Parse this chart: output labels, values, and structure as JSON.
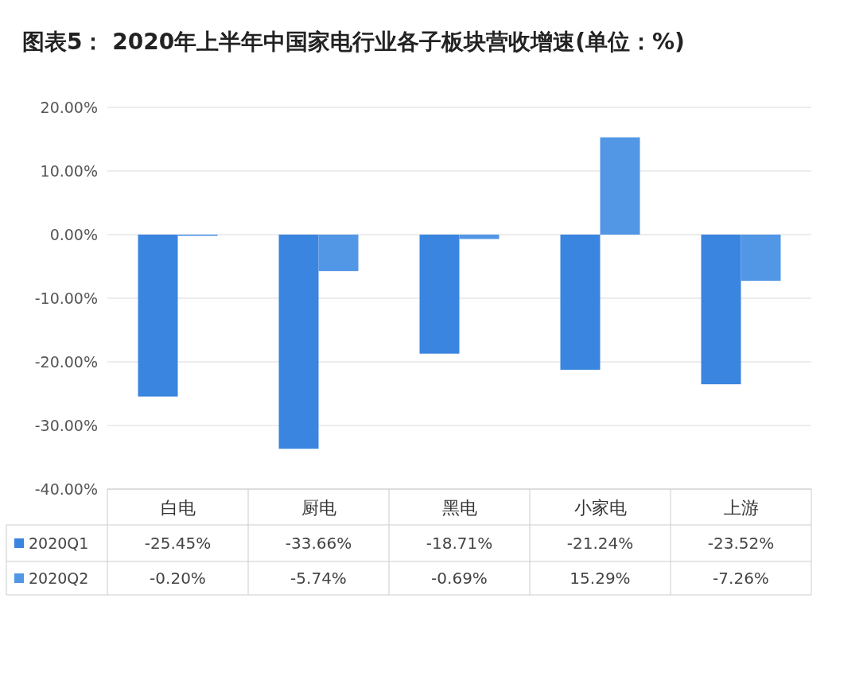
{
  "chart_data": {
    "type": "bar",
    "title": "图表5： 2020年上半年中国家电行业各子板块营收增速(单位：%)",
    "categories": [
      "白电",
      "厨电",
      "黑电",
      "小家电",
      "上游"
    ],
    "series": [
      {
        "name": "2020Q1",
        "color": "#3a85df",
        "values": [
          -25.45,
          -33.66,
          -18.71,
          -21.24,
          -23.52
        ],
        "value_labels": [
          "-25.45%",
          "-33.66%",
          "-18.71%",
          "-21.24%",
          "-23.52%"
        ]
      },
      {
        "name": "2020Q2",
        "color": "#5296e6",
        "values": [
          -0.2,
          -5.74,
          -0.69,
          15.29,
          -7.26
        ],
        "value_labels": [
          "-0.20%",
          "-5.74%",
          "-0.69%",
          "15.29%",
          "-7.26%"
        ]
      }
    ],
    "ylim": [
      -40,
      20
    ],
    "yticks": [
      {
        "value": -40,
        "label": "-40.00%"
      },
      {
        "value": -30,
        "label": "-30.00%"
      },
      {
        "value": -20,
        "label": "-20.00%"
      },
      {
        "value": -10,
        "label": "-10.00%"
      },
      {
        "value": 0,
        "label": "0.00%"
      },
      {
        "value": 10,
        "label": "10.00%"
      },
      {
        "value": 20,
        "label": "20.00%"
      }
    ],
    "grid": "y",
    "legend": "bottom"
  }
}
